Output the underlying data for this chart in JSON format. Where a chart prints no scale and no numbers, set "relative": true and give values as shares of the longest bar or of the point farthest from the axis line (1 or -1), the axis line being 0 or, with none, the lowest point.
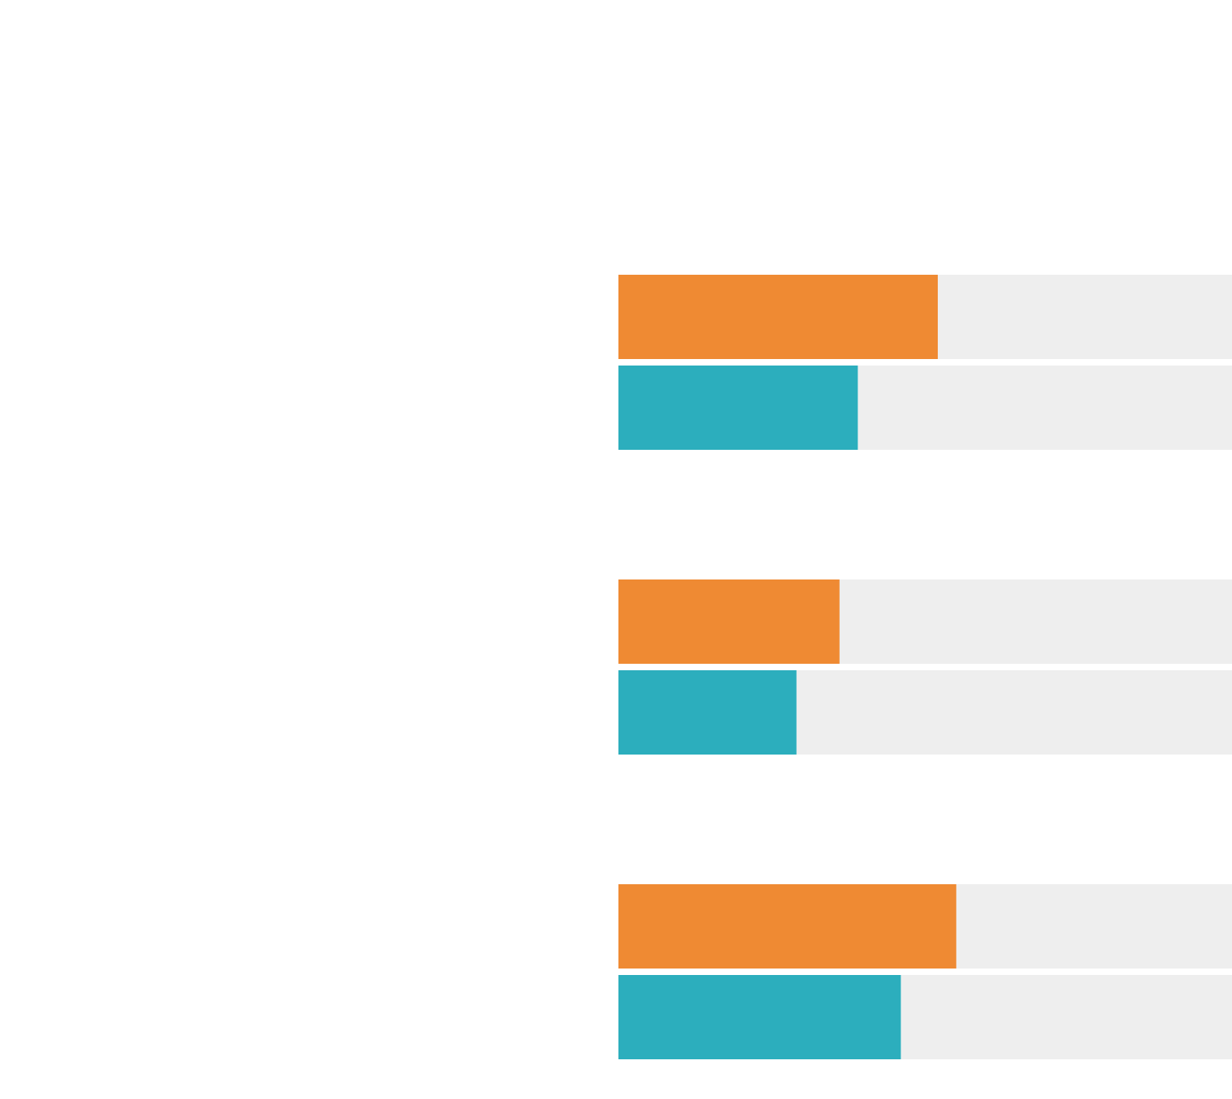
{
  "chart_data": {
    "type": "bar",
    "orientation": "horizontal",
    "stacked": true,
    "relative": true,
    "categories": [
      null,
      null,
      null,
      null,
      null,
      null
    ],
    "series": [
      {
        "colors": [
          "#ef8a33",
          "#2caebd",
          "#ef8a33",
          "#2caebd",
          "#ef8a33",
          "#2caebd"
        ],
        "values": [
          0.52,
          0.39,
          0.36,
          0.29,
          0.55,
          0.46
        ]
      },
      {
        "color": "#eeeeee",
        "values": [
          0.48,
          0.61,
          0.64,
          0.71,
          0.45,
          0.54
        ]
      }
    ]
  }
}
